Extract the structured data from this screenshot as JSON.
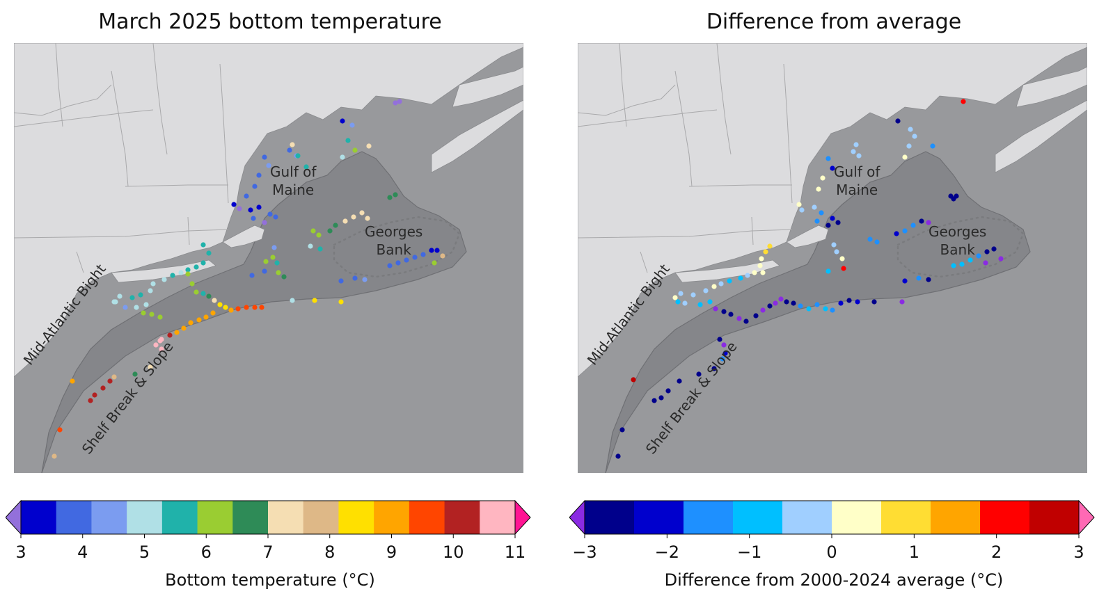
{
  "panels": [
    {
      "title": "March 2025 bottom temperature",
      "colorbar": {
        "label": "Bottom temperature (°C)",
        "ticks": [
          "3",
          "4",
          "5",
          "6",
          "7",
          "8",
          "9",
          "10",
          "11"
        ],
        "extend_colors": {
          "low": "#9370db",
          "high": "#ff1493"
        },
        "colors": [
          "#0000cd",
          "#4169e1",
          "#7b9cf0",
          "#b0e0e6",
          "#20b2aa",
          "#9acd32",
          "#2e8b57",
          "#f5deb3",
          "#deb887",
          "#ffe000",
          "#ffa500",
          "#ff4500",
          "#b22222",
          "#ffb6c1"
        ]
      },
      "labels": {
        "gulf": "Gulf of\nMaine",
        "georges": "Georges\nBank",
        "mab": "Mid-Atlantic Bight",
        "shelf": "Shelf Break & Slope"
      }
    },
    {
      "title": "Difference from average",
      "colorbar": {
        "label": "Difference from 2000-2024 average (°C)",
        "ticks": [
          "−3",
          "−2",
          "−1",
          "0",
          "1",
          "2",
          "3"
        ],
        "extend_colors": {
          "low": "#8a2be2",
          "high": "#ff69b4"
        },
        "colors": [
          "#00008b",
          "#0000cd",
          "#1e90ff",
          "#00bfff",
          "#a0cfff",
          "#ffffc8",
          "#ffdd33",
          "#ffa500",
          "#ff0000",
          "#c00000"
        ]
      },
      "labels": {
        "gulf": "Gulf of\nMaine",
        "georges": "Georges\nBank",
        "mab": "Mid-Atlantic Bight",
        "shelf": "Shelf Break & Slope"
      }
    }
  ],
  "map_colors": {
    "land": "#dcdcde",
    "ocean": "#98999c",
    "shelf": "#85868a",
    "border": "#a9a9ab"
  }
}
